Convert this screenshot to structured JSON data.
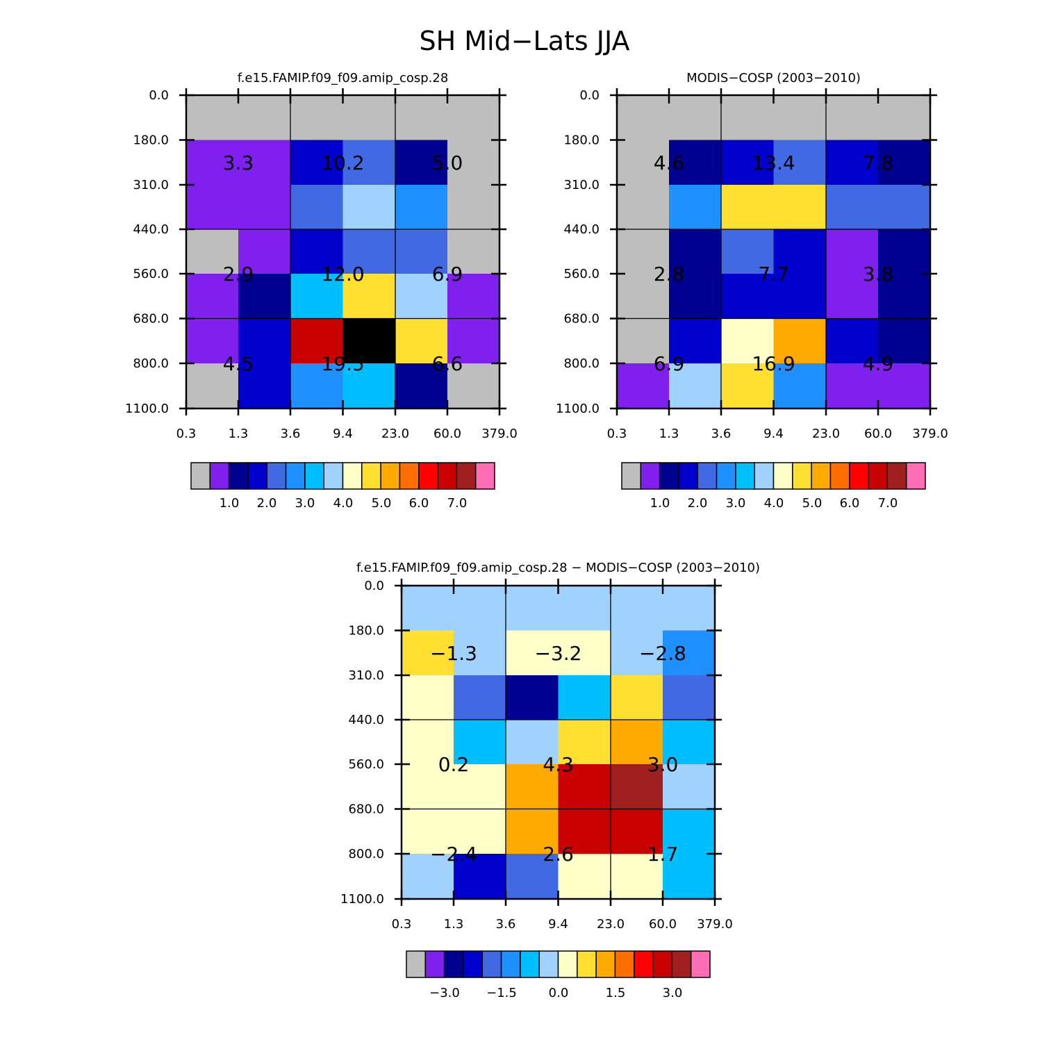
{
  "title": "SH Mid−Lats JJA",
  "chart_data": [
    {
      "type": "heatmap",
      "title": "f.e15.FAMIP.f09_f09.amip_cosp.28",
      "x_ticks": [
        "0.3",
        "1.3",
        "3.6",
        "9.4",
        "23.0",
        "60.0",
        "379.0"
      ],
      "y_ticks": [
        "0.0",
        "180.0",
        "310.0",
        "440.0",
        "560.0",
        "680.0",
        "800.0",
        "1100.0"
      ],
      "cells": [
        [
          0,
          0,
          0,
          0,
          0,
          0
        ],
        [
          1,
          1,
          3,
          4,
          2,
          0
        ],
        [
          1,
          1,
          4,
          7,
          5,
          0
        ],
        [
          0,
          1,
          3,
          4,
          4,
          0
        ],
        [
          1,
          2,
          6,
          9,
          7,
          1
        ],
        [
          1,
          3,
          13,
          16,
          9,
          1
        ],
        [
          0,
          3,
          5,
          6,
          2,
          0
        ]
      ],
      "group_values": [
        [
          "3.3",
          "10.2",
          "5.0"
        ],
        [
          "2.9",
          "12.0",
          "6.9"
        ],
        [
          "4.5",
          "19.5",
          "6.6"
        ]
      ],
      "colorbar_labels": [
        "1.0",
        "2.0",
        "3.0",
        "4.0",
        "5.0",
        "6.0",
        "7.0"
      ]
    },
    {
      "type": "heatmap",
      "title": "MODIS−COSP (2003−2010)",
      "x_ticks": [
        "0.3",
        "1.3",
        "3.6",
        "9.4",
        "23.0",
        "60.0",
        "379.0"
      ],
      "y_ticks": [
        "0.0",
        "180.0",
        "310.0",
        "440.0",
        "560.0",
        "680.0",
        "800.0",
        "1100.0"
      ],
      "cells": [
        [
          0,
          0,
          0,
          0,
          0,
          0
        ],
        [
          0,
          2,
          3,
          4,
          3,
          2
        ],
        [
          0,
          5,
          9,
          9,
          4,
          4
        ],
        [
          0,
          2,
          4,
          3,
          1,
          2
        ],
        [
          0,
          2,
          3,
          3,
          1,
          2
        ],
        [
          0,
          3,
          8,
          10,
          3,
          2
        ],
        [
          1,
          7,
          9,
          5,
          1,
          1
        ]
      ],
      "group_values": [
        [
          "4.6",
          "13.4",
          "7.8"
        ],
        [
          "2.8",
          "7.7",
          "3.8"
        ],
        [
          "6.9",
          "16.9",
          "4.9"
        ]
      ],
      "colorbar_labels": [
        "1.0",
        "2.0",
        "3.0",
        "4.0",
        "5.0",
        "6.0",
        "7.0"
      ]
    },
    {
      "type": "heatmap",
      "title": "f.e15.FAMIP.f09_f09.amip_cosp.28 − MODIS−COSP (2003−2010)",
      "x_ticks": [
        "0.3",
        "1.3",
        "3.6",
        "9.4",
        "23.0",
        "60.0",
        "379.0"
      ],
      "y_ticks": [
        "0.0",
        "180.0",
        "310.0",
        "440.0",
        "560.0",
        "680.0",
        "800.0",
        "1100.0"
      ],
      "cells": [
        [
          7,
          7,
          7,
          7,
          7,
          7
        ],
        [
          9,
          7,
          8,
          8,
          7,
          5
        ],
        [
          8,
          4,
          2,
          6,
          9,
          4
        ],
        [
          8,
          6,
          7,
          9,
          10,
          6
        ],
        [
          8,
          8,
          10,
          13,
          14,
          7
        ],
        [
          8,
          8,
          10,
          13,
          13,
          6
        ],
        [
          7,
          3,
          4,
          8,
          8,
          6
        ]
      ],
      "group_values": [
        [
          "−1.3",
          "−3.2",
          "−2.8"
        ],
        [
          "0.2",
          "4.3",
          "3.0"
        ],
        [
          "−2.4",
          "2.6",
          "1.7"
        ]
      ],
      "colorbar_labels": [
        "−3.0",
        "−1.5",
        "0.0",
        "1.5",
        "3.0"
      ]
    }
  ],
  "palette": [
    "#bebebe",
    "#8020ee",
    "#000090",
    "#0000cd",
    "#4169e1",
    "#1e90ff",
    "#00bfff",
    "#a0d2ff",
    "#ffffc8",
    "#ffe030",
    "#ffaa00",
    "#ff6e00",
    "#ff0000",
    "#c80000",
    "#a02020",
    "#ff6eb4"
  ]
}
